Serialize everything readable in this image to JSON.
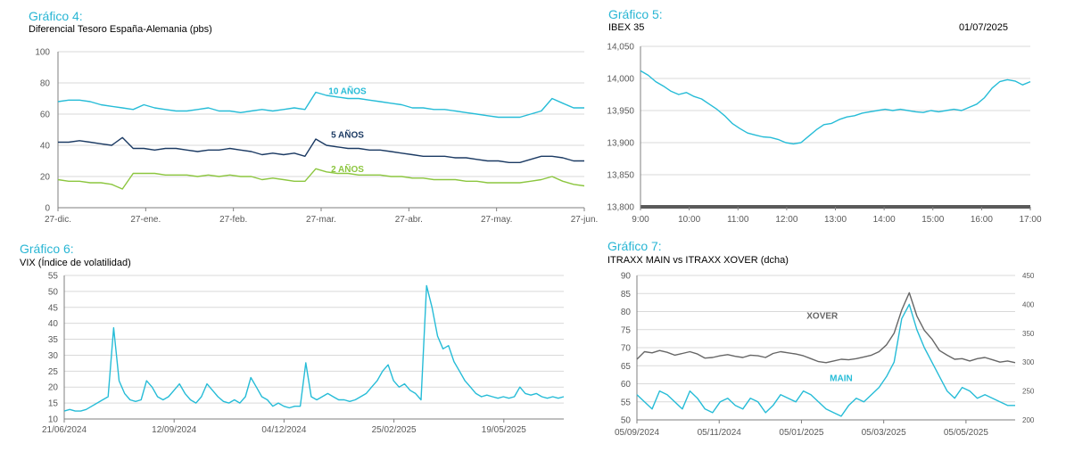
{
  "colors": {
    "title": "#29b6d4",
    "cyan": "#26bcd7",
    "navy": "#1b3a63",
    "green": "#8cc63f",
    "gray": "#666666",
    "grid": "#d9d9d9",
    "axis": "#7f7f7f"
  },
  "chart_data": [
    {
      "id": "g4",
      "type": "line",
      "title": "Gráfico 4:",
      "subtitle": "Diferencial Tesoro España-Alemania (pbs)",
      "xticks": [
        "27-dic.",
        "27-ene.",
        "27-feb.",
        "27-mar.",
        "27-abr.",
        "27-may.",
        "27-jun."
      ],
      "yticks": [
        0,
        20,
        40,
        60,
        80,
        100
      ],
      "ylim": [
        0,
        100
      ],
      "grid": true,
      "series": [
        {
          "name": "10 AÑOS",
          "color": "cyan",
          "values": [
            68,
            69,
            69,
            68,
            66,
            65,
            64,
            63,
            66,
            64,
            63,
            62,
            62,
            63,
            64,
            62,
            62,
            61,
            62,
            63,
            62,
            63,
            64,
            63,
            74,
            72,
            71,
            70,
            70,
            69,
            68,
            67,
            66,
            64,
            64,
            63,
            63,
            62,
            61,
            60,
            59,
            58,
            58,
            58,
            60,
            62,
            70,
            67,
            64,
            64
          ]
        },
        {
          "name": "5 AÑOS",
          "color": "navy",
          "values": [
            42,
            42,
            43,
            42,
            41,
            40,
            45,
            38,
            38,
            37,
            38,
            38,
            37,
            36,
            37,
            37,
            38,
            37,
            36,
            34,
            35,
            34,
            35,
            33,
            44,
            40,
            39,
            38,
            38,
            37,
            37,
            36,
            35,
            34,
            33,
            33,
            33,
            32,
            32,
            31,
            30,
            30,
            29,
            29,
            31,
            33,
            33,
            32,
            30,
            30
          ]
        },
        {
          "name": "2 AÑOS",
          "color": "green",
          "values": [
            18,
            17,
            17,
            16,
            16,
            15,
            12,
            22,
            22,
            22,
            21,
            21,
            21,
            20,
            21,
            20,
            21,
            20,
            20,
            18,
            19,
            18,
            17,
            17,
            25,
            23,
            22,
            22,
            21,
            21,
            21,
            20,
            20,
            19,
            19,
            18,
            18,
            18,
            17,
            17,
            16,
            16,
            16,
            16,
            17,
            18,
            20,
            17,
            15,
            14
          ]
        }
      ]
    },
    {
      "id": "g5",
      "type": "line",
      "title": "Gráfico 5:",
      "subtitle": "IBEX 35",
      "date": "01/07/2025",
      "xticks": [
        "9:00",
        "10:00",
        "11:00",
        "12:00",
        "13:00",
        "14:00",
        "15:00",
        "16:00",
        "17:00"
      ],
      "yticks": [
        "13,800",
        "13,850",
        "13,900",
        "13,950",
        "14,000",
        "14,050"
      ],
      "ylim": [
        13800,
        14050
      ],
      "grid": true,
      "series": [
        {
          "color": "cyan",
          "values": [
            14012,
            14005,
            13995,
            13988,
            13980,
            13975,
            13978,
            13972,
            13968,
            13960,
            13952,
            13942,
            13930,
            13922,
            13915,
            13912,
            13909,
            13908,
            13905,
            13900,
            13898,
            13900,
            13910,
            13920,
            13928,
            13930,
            13936,
            13940,
            13942,
            13946,
            13948,
            13950,
            13952,
            13950,
            13952,
            13950,
            13948,
            13947,
            13950,
            13948,
            13950,
            13952,
            13950,
            13955,
            13960,
            13970,
            13985,
            13995,
            13998,
            13996,
            13990,
            13995
          ]
        }
      ]
    },
    {
      "id": "g6",
      "type": "line",
      "title": "Gráfico 6:",
      "subtitle": "VIX (Índice de volatilidad)",
      "xticks": [
        "21/06/2024",
        "12/09/2024",
        "04/12/2024",
        "25/02/2025",
        "19/05/2025"
      ],
      "yticks": [
        10,
        15,
        20,
        25,
        30,
        35,
        40,
        45,
        50,
        55
      ],
      "ylim": [
        10,
        55
      ],
      "grid": true,
      "series": [
        {
          "color": "cyan",
          "values": [
            12.5,
            13,
            12.5,
            12.5,
            13,
            14,
            15,
            16,
            17,
            38.6,
            22,
            18,
            16,
            15.5,
            16,
            22,
            20,
            17,
            16,
            17,
            19,
            21,
            18,
            16,
            15,
            17,
            21,
            19,
            17,
            15.5,
            15,
            16,
            15,
            17,
            23,
            20,
            17,
            16,
            14,
            15,
            14,
            13.5,
            14,
            14,
            27.6,
            17,
            16,
            17,
            18,
            17,
            16,
            16,
            15.5,
            16,
            17,
            18,
            20,
            22,
            25,
            27,
            22,
            20,
            21,
            19,
            18,
            16,
            51.8,
            45,
            36,
            32,
            33,
            28,
            25,
            22,
            20,
            18,
            17,
            17.5,
            17,
            16.5,
            17,
            16.5,
            17,
            20,
            18,
            17.5,
            18,
            17,
            16.5,
            17,
            16.5,
            17
          ]
        }
      ]
    },
    {
      "id": "g7",
      "type": "line",
      "title": "Gráfico 7:",
      "subtitle": "ITRAXX MAIN vs ITRAXX XOVER (dcha)",
      "xticks": [
        "05/09/2024",
        "05/11/2024",
        "05/01/2025",
        "05/03/2025",
        "05/05/2025"
      ],
      "yticks": [
        50,
        55,
        60,
        65,
        70,
        75,
        80,
        85,
        90
      ],
      "yticks_right": [
        200,
        250,
        300,
        350,
        400,
        450
      ],
      "ylim": [
        50,
        90
      ],
      "ylim_right": [
        200,
        450
      ],
      "grid": true,
      "series": [
        {
          "name": "MAIN",
          "color": "cyan",
          "axis": "left",
          "values": [
            57,
            55,
            53,
            58,
            57,
            55,
            53,
            58,
            56,
            53,
            52,
            55,
            56,
            54,
            53,
            56,
            55,
            52,
            54,
            57,
            56,
            55,
            58,
            57,
            55,
            53,
            52,
            51,
            54,
            56,
            55,
            57,
            59,
            62,
            66,
            78,
            82,
            75,
            70,
            66,
            62,
            58,
            56,
            59,
            58,
            56,
            57,
            56,
            55,
            54,
            54
          ]
        },
        {
          "name": "XOVER",
          "color": "gray",
          "axis": "right",
          "values": [
            305,
            318,
            316,
            320,
            317,
            312,
            315,
            318,
            314,
            307,
            308,
            311,
            313,
            310,
            308,
            312,
            311,
            308,
            315,
            318,
            316,
            314,
            311,
            306,
            301,
            299,
            302,
            305,
            304,
            306,
            309,
            312,
            318,
            330,
            350,
            390,
            420,
            380,
            355,
            340,
            320,
            312,
            305,
            306,
            302,
            306,
            308,
            304,
            300,
            302,
            299
          ]
        }
      ]
    }
  ]
}
